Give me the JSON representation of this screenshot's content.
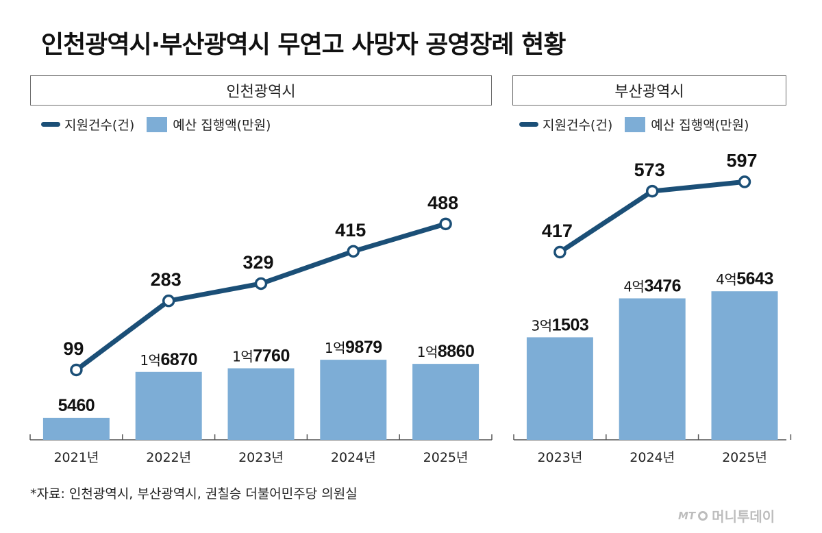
{
  "title": "인천광역시·부산광역시 무연고 사망자 공영장례 현황",
  "legend": {
    "line": "지원건수(건)",
    "bar": "예산 집행액(만원)"
  },
  "colors": {
    "line": "#1b4f77",
    "bar": "#7dadd6",
    "axis": "#555555"
  },
  "source": "*자료: 인천광역시, 부산광역시, 권칠승 더불어민주당 의원실",
  "logo": {
    "mt": "MT",
    "name": "머니투데이"
  },
  "chart_data": [
    {
      "panel": "인천광역시",
      "type": "bar+line",
      "categories": [
        "2021년",
        "2022년",
        "2023년",
        "2024년",
        "2025년"
      ],
      "series": [
        {
          "name": "예산 집행액(만원)",
          "type": "bar",
          "values": [
            5460,
            16870,
            17760,
            19879,
            18860
          ],
          "labels": [
            [
              "",
              "5460"
            ],
            [
              "1억",
              "6870"
            ],
            [
              "1억",
              "7760"
            ],
            [
              "1억",
              "9879"
            ],
            [
              "1억",
              "8860"
            ]
          ]
        },
        {
          "name": "지원건수(건)",
          "type": "line",
          "values": [
            99,
            283,
            329,
            415,
            488
          ],
          "labels": [
            "99",
            "283",
            "329",
            "415",
            "488"
          ]
        }
      ]
    },
    {
      "panel": "부산광역시",
      "type": "bar+line",
      "categories": [
        "2023년",
        "2024년",
        "2025년"
      ],
      "series": [
        {
          "name": "예산 집행액(만원)",
          "type": "bar",
          "values": [
            31503,
            43476,
            45643
          ],
          "labels": [
            [
              "3억",
              "1503"
            ],
            [
              "4억",
              "3476"
            ],
            [
              "4억",
              "5643"
            ]
          ]
        },
        {
          "name": "지원건수(건)",
          "type": "line",
          "values": [
            417,
            573,
            597
          ],
          "labels": [
            "417",
            "573",
            "597"
          ]
        }
      ]
    }
  ]
}
